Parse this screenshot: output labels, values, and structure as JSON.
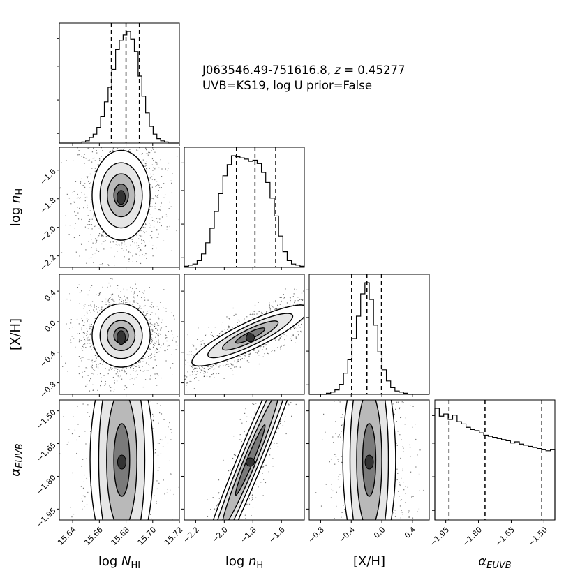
{
  "chart_data": {
    "type": "corner",
    "title_line1": "J063546.49-751616.8, z = 0.45277",
    "title_line2": "UVB=KS19, log U prior=False",
    "parameters": [
      {
        "id": "logN",
        "label": "log N_HI",
        "range": [
          15.63,
          15.72
        ],
        "ticks": [
          15.64,
          15.66,
          15.68,
          15.7,
          15.72
        ],
        "tick_labels": [
          "15.64",
          "15.66",
          "15.68",
          "15.70",
          "15.72"
        ],
        "quantiles": [
          15.669,
          15.68,
          15.69
        ]
      },
      {
        "id": "lognH",
        "label": "log n_H",
        "range": [
          -2.28,
          -1.44
        ],
        "ticks": [
          -2.2,
          -2.0,
          -1.8,
          -1.6
        ],
        "tick_labels": [
          "−2.2",
          "−2.0",
          "−1.8",
          "−1.6"
        ],
        "quantiles": [
          -1.915,
          -1.785,
          -1.64
        ]
      },
      {
        "id": "XH",
        "label": "[X/H]",
        "range": [
          -0.95,
          0.62
        ],
        "ticks": [
          -0.8,
          -0.4,
          0.0,
          0.4
        ],
        "tick_labels": [
          "−0.8",
          "−0.4",
          "0.0",
          "0.4"
        ],
        "quantiles": [
          -0.395,
          -0.195,
          -0.005
        ]
      },
      {
        "id": "alpha",
        "label": "α_EUVB",
        "range": [
          -2.0,
          -1.45
        ],
        "ticks": [
          -1.95,
          -1.8,
          -1.65,
          -1.5
        ],
        "tick_labels": [
          "−1.95",
          "−1.80",
          "−1.65",
          "−1.50"
        ],
        "quantiles": [
          -1.935,
          -1.77,
          -1.51
        ]
      }
    ],
    "y_axis_labels": [
      {
        "row": 1,
        "text": "log n_H",
        "ticks": [
          -2.2,
          -2.0,
          -1.8,
          -1.6
        ],
        "tick_labels": [
          "−2.2",
          "−2.0",
          "−1.8",
          "−1.6"
        ]
      },
      {
        "row": 2,
        "text": "[X/H]",
        "ticks": [
          -0.8,
          -0.4,
          0.0,
          0.4
        ],
        "tick_labels": [
          "−0.8",
          "−0.4",
          "0.0",
          "0.4"
        ]
      },
      {
        "row": 3,
        "text": "α_EUVB",
        "ticks": [
          -1.95,
          -1.8,
          -1.65,
          -1.5
        ],
        "tick_labels": [
          "−1.95",
          "−1.80",
          "−1.65",
          "−1.50"
        ]
      }
    ],
    "histograms": {
      "logN": [
        0,
        0,
        0,
        0,
        0,
        0,
        0.01,
        0.02,
        0.05,
        0.08,
        0.14,
        0.24,
        0.37,
        0.5,
        0.66,
        0.84,
        0.92,
        0.97,
        1.0,
        0.93,
        0.82,
        0.6,
        0.42,
        0.27,
        0.15,
        0.08,
        0.04,
        0.02,
        0.01,
        0,
        0,
        0
      ],
      "lognH": [
        0.01,
        0.02,
        0.03,
        0.06,
        0.12,
        0.22,
        0.35,
        0.5,
        0.66,
        0.82,
        0.92,
        1.0,
        0.99,
        0.98,
        0.97,
        0.95,
        0.96,
        0.93,
        0.85,
        0.76,
        0.62,
        0.46,
        0.28,
        0.14,
        0.06,
        0.03,
        0.02,
        0.01
      ],
      "XH": [
        0,
        0,
        0,
        0,
        0.01,
        0.02,
        0.04,
        0.09,
        0.19,
        0.31,
        0.5,
        0.7,
        0.9,
        1.0,
        0.85,
        0.62,
        0.38,
        0.22,
        0.12,
        0.06,
        0.03,
        0.02,
        0.01,
        0,
        0,
        0,
        0,
        0
      ],
      "alpha": [
        1.0,
        0.93,
        0.95,
        0.9,
        0.94,
        0.88,
        0.86,
        0.83,
        0.81,
        0.8,
        0.78,
        0.76,
        0.75,
        0.74,
        0.73,
        0.72,
        0.71,
        0.69,
        0.7,
        0.68,
        0.67,
        0.66,
        0.65,
        0.64,
        0.63,
        0.62,
        0.63
      ]
    },
    "correlations": {
      "1-0": 0.0,
      "2-0": 0.0,
      "2-1": 0.88,
      "3-0": 0.0,
      "3-1": 0.97,
      "3-2": 0.05
    },
    "grid": false,
    "histogram_style": "step",
    "quantile_line_style": "dashed"
  }
}
